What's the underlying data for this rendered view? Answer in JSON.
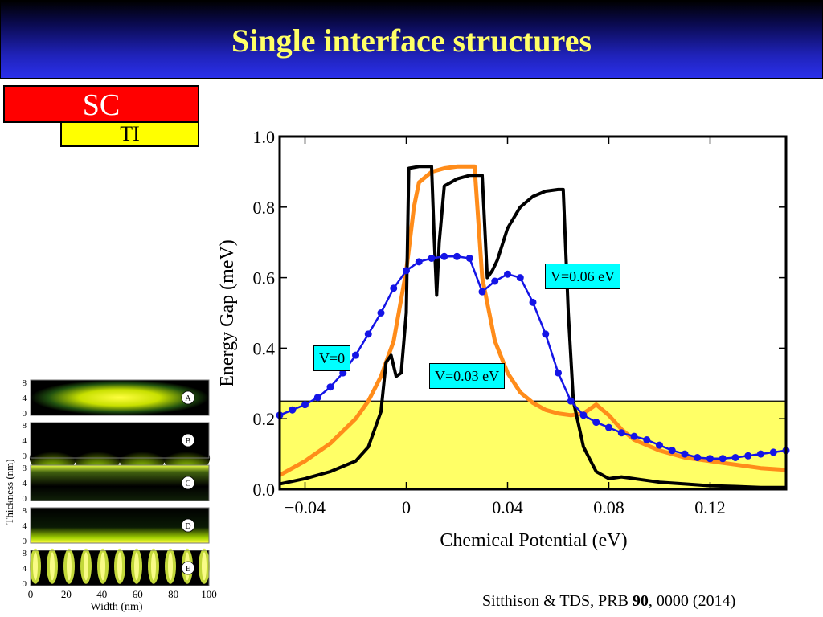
{
  "slide": {
    "title": "Single interface structures",
    "sc_label": "SC",
    "ti_label": "TI",
    "citation": {
      "prefix": "Sitthison & TDS, PRB ",
      "volume": "90",
      "suffix": ", 0000 (2014)"
    }
  },
  "chart_data": [
    {
      "type": "line",
      "title": "",
      "xlabel": "Chemical Potential (eV)",
      "ylabel": "Energy Gap (meV)",
      "xlim": [
        -0.05,
        0.15
      ],
      "ylim": [
        0,
        1.0
      ],
      "xticks": [
        -0.04,
        0,
        0.04,
        0.08,
        0.12
      ],
      "xtick_labels": [
        "−0.04",
        "0",
        "0.04",
        "0.08",
        "0.12"
      ],
      "yticks": [
        0,
        0.2,
        0.4,
        0.6,
        0.8,
        1.0
      ],
      "ytick_labels": [
        "0.0",
        "0.2",
        "0.4",
        "0.6",
        "0.8",
        "1.0"
      ],
      "grid": false,
      "shaded_region": {
        "y_from": 0,
        "y_to": 0.25,
        "color": "#ffff66"
      },
      "horizontal_line": 0.25,
      "series": [
        {
          "name": "V=0",
          "color": "#1414e6",
          "markers": true,
          "x": [
            -0.05,
            -0.045,
            -0.04,
            -0.035,
            -0.03,
            -0.025,
            -0.02,
            -0.015,
            -0.01,
            -0.005,
            0,
            0.005,
            0.01,
            0.015,
            0.02,
            0.025,
            0.03,
            0.035,
            0.04,
            0.045,
            0.05,
            0.055,
            0.06,
            0.065,
            0.07,
            0.075,
            0.08,
            0.085,
            0.09,
            0.095,
            0.1,
            0.105,
            0.11,
            0.115,
            0.12,
            0.125,
            0.13,
            0.135,
            0.14,
            0.145,
            0.15
          ],
          "y": [
            0.21,
            0.225,
            0.24,
            0.26,
            0.29,
            0.33,
            0.38,
            0.44,
            0.5,
            0.57,
            0.62,
            0.645,
            0.655,
            0.66,
            0.66,
            0.655,
            0.56,
            0.59,
            0.61,
            0.6,
            0.53,
            0.44,
            0.33,
            0.25,
            0.21,
            0.19,
            0.175,
            0.16,
            0.15,
            0.14,
            0.125,
            0.11,
            0.1,
            0.09,
            0.087,
            0.087,
            0.09,
            0.095,
            0.1,
            0.105,
            0.11
          ]
        },
        {
          "name": "V=0.03 eV",
          "color": "#ff8c1a",
          "markers": false,
          "x": [
            -0.05,
            -0.04,
            -0.03,
            -0.02,
            -0.015,
            -0.01,
            -0.005,
            0,
            0.003,
            0.005,
            0.01,
            0.015,
            0.02,
            0.025,
            0.027,
            0.03,
            0.035,
            0.04,
            0.045,
            0.05,
            0.055,
            0.06,
            0.065,
            0.07,
            0.075,
            0.08,
            0.085,
            0.09,
            0.1,
            0.11,
            0.12,
            0.13,
            0.14,
            0.15
          ],
          "y": [
            0.04,
            0.08,
            0.13,
            0.2,
            0.25,
            0.32,
            0.42,
            0.62,
            0.8,
            0.87,
            0.9,
            0.91,
            0.915,
            0.915,
            0.915,
            0.6,
            0.42,
            0.33,
            0.275,
            0.245,
            0.225,
            0.215,
            0.21,
            0.215,
            0.24,
            0.21,
            0.17,
            0.14,
            0.11,
            0.09,
            0.08,
            0.07,
            0.06,
            0.055
          ]
        },
        {
          "name": "V=0.06 eV",
          "color": "#000000",
          "markers": false,
          "x": [
            -0.05,
            -0.04,
            -0.03,
            -0.02,
            -0.015,
            -0.01,
            -0.008,
            -0.006,
            -0.004,
            -0.002,
            0,
            0.001,
            0.005,
            0.01,
            0.011,
            0.012,
            0.013,
            0.015,
            0.02,
            0.025,
            0.03,
            0.032,
            0.034,
            0.036,
            0.04,
            0.045,
            0.05,
            0.055,
            0.06,
            0.062,
            0.064,
            0.066,
            0.07,
            0.075,
            0.08,
            0.085,
            0.09,
            0.1,
            0.11,
            0.12,
            0.13,
            0.14,
            0.15
          ],
          "y": [
            0.015,
            0.03,
            0.05,
            0.08,
            0.12,
            0.22,
            0.36,
            0.38,
            0.32,
            0.33,
            0.5,
            0.91,
            0.915,
            0.915,
            0.72,
            0.55,
            0.7,
            0.86,
            0.88,
            0.89,
            0.89,
            0.6,
            0.62,
            0.65,
            0.74,
            0.8,
            0.83,
            0.845,
            0.85,
            0.85,
            0.5,
            0.25,
            0.12,
            0.05,
            0.03,
            0.035,
            0.03,
            0.02,
            0.015,
            0.01,
            0.008,
            0.005,
            0.005
          ]
        }
      ],
      "annotations": [
        {
          "text": "V=0.06 eV",
          "series": "V=0.06 eV"
        },
        {
          "text": "V=0",
          "series": "V=0"
        },
        {
          "text": "V=0.03 eV",
          "series": "V=0.03 eV"
        }
      ]
    },
    {
      "type": "heatmap",
      "title": "",
      "xlabel": "Width (nm)",
      "ylabel": "Thickness (nm)",
      "xlim": [
        0,
        100
      ],
      "ylim": [
        0,
        8
      ],
      "xtick_labels": [
        "0",
        "20",
        "40",
        "60",
        "80",
        "100"
      ],
      "ytick_labels": [
        "0",
        "4",
        "8"
      ],
      "panels": [
        "A",
        "B",
        "C",
        "D",
        "E"
      ]
    }
  ]
}
